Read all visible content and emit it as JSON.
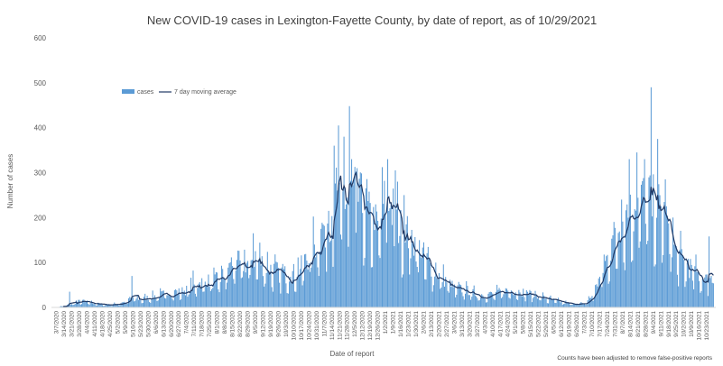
{
  "chart_data": {
    "type": "bar",
    "title": "New COVID-19 cases in Lexington-Fayette County, by date of report, as of 10/29/2021",
    "xlabel": "Date of report",
    "ylabel": "Number of cases",
    "ylim": [
      0,
      600
    ],
    "yticks": [
      0,
      100,
      200,
      300,
      400,
      500,
      600
    ],
    "grid": false,
    "legend_position": "top-left",
    "note": "Counts have been adjusted to remove false-positive reports",
    "x_start": "3/7/2020",
    "x_end": "10/29/2021",
    "xtick_labels": [
      "3/7/2020",
      "3/14/2020",
      "3/21/2020",
      "3/28/2020",
      "4/4/2020",
      "4/11/2020",
      "4/18/2020",
      "4/25/2020",
      "5/2/2020",
      "5/9/2020",
      "5/16/2020",
      "5/23/2020",
      "5/30/2020",
      "6/6/2020",
      "6/13/2020",
      "6/20/2020",
      "6/27/2020",
      "7/4/2020",
      "7/11/2020",
      "7/18/2020",
      "7/25/2020",
      "8/1/2020",
      "8/8/2020",
      "8/15/2020",
      "8/22/2020",
      "8/29/2020",
      "9/5/2020",
      "9/12/2020",
      "9/19/2020",
      "9/26/2020",
      "10/3/2020",
      "10/10/2020",
      "10/17/2020",
      "10/24/2020",
      "10/31/2020",
      "11/7/2020",
      "11/14/2020",
      "11/21/2020",
      "11/28/2020",
      "12/5/2020",
      "12/12/2020",
      "12/19/2020",
      "12/26/2020",
      "1/2/2021",
      "1/9/2021",
      "1/16/2021",
      "1/23/2021",
      "1/30/2021",
      "2/6/2021",
      "2/13/2021",
      "2/20/2021",
      "2/27/2021",
      "3/6/2021",
      "3/13/2021",
      "3/20/2021",
      "3/27/2021",
      "4/3/2021",
      "4/10/2021",
      "4/17/2021",
      "4/24/2021",
      "5/1/2021",
      "5/8/2021",
      "5/15/2021",
      "5/22/2021",
      "5/29/2021",
      "6/5/2021",
      "6/12/2021",
      "6/19/2021",
      "6/26/2021",
      "7/3/2021",
      "7/10/2021",
      "7/17/2021",
      "7/24/2021",
      "7/31/2021",
      "8/7/2021",
      "8/14/2021",
      "8/21/2021",
      "8/28/2021",
      "9/4/2021",
      "9/11/2021",
      "9/18/2021",
      "9/25/2021",
      "10/2/2021",
      "10/9/2021",
      "10/16/2021",
      "10/23/2021"
    ],
    "weekly_level": [
      1,
      3,
      8,
      14,
      12,
      9,
      7,
      6,
      8,
      12,
      22,
      18,
      22,
      25,
      30,
      32,
      34,
      38,
      48,
      55,
      58,
      60,
      72,
      100,
      95,
      98,
      112,
      95,
      85,
      78,
      72,
      75,
      88,
      115,
      145,
      180,
      210,
      225,
      240,
      250,
      225,
      195,
      175,
      235,
      210,
      170,
      160,
      140,
      112,
      88,
      70,
      58,
      42,
      40,
      36,
      28,
      26,
      30,
      34,
      38,
      36,
      34,
      30,
      26,
      20,
      16,
      12,
      9,
      8,
      8,
      25,
      65,
      110,
      160,
      190,
      205,
      225,
      235,
      225,
      215,
      175,
      120,
      100,
      85,
      70,
      60
    ],
    "spikes": [
      {
        "date": "3/19/2020",
        "value": 35
      },
      {
        "date": "5/15/2020",
        "value": 70
      },
      {
        "date": "7/10/2020",
        "value": 82
      },
      {
        "date": "9/3/2020",
        "value": 165
      },
      {
        "date": "11/16/2020",
        "value": 360
      },
      {
        "date": "11/20/2020",
        "value": 405
      },
      {
        "date": "11/25/2020",
        "value": 380
      },
      {
        "date": "11/30/2020",
        "value": 448
      },
      {
        "date": "12/7/2020",
        "value": 310
      },
      {
        "date": "12/15/2020",
        "value": 265
      },
      {
        "date": "1/4/2021",
        "value": 330
      },
      {
        "date": "1/11/2021",
        "value": 305
      },
      {
        "date": "1/19/2021",
        "value": 250
      },
      {
        "date": "8/6/2021",
        "value": 240
      },
      {
        "date": "8/13/2021",
        "value": 330
      },
      {
        "date": "8/20/2021",
        "value": 345
      },
      {
        "date": "8/27/2021",
        "value": 330
      },
      {
        "date": "9/2/2021",
        "value": 490
      },
      {
        "date": "9/8/2021",
        "value": 375
      },
      {
        "date": "9/15/2021",
        "value": 285
      },
      {
        "date": "10/25/2021",
        "value": 158
      }
    ],
    "series": [
      {
        "name": "cases",
        "type": "bar",
        "color": "#5b9bd5"
      },
      {
        "name": "7 day moving average",
        "type": "line",
        "color": "#1f3864"
      }
    ]
  }
}
